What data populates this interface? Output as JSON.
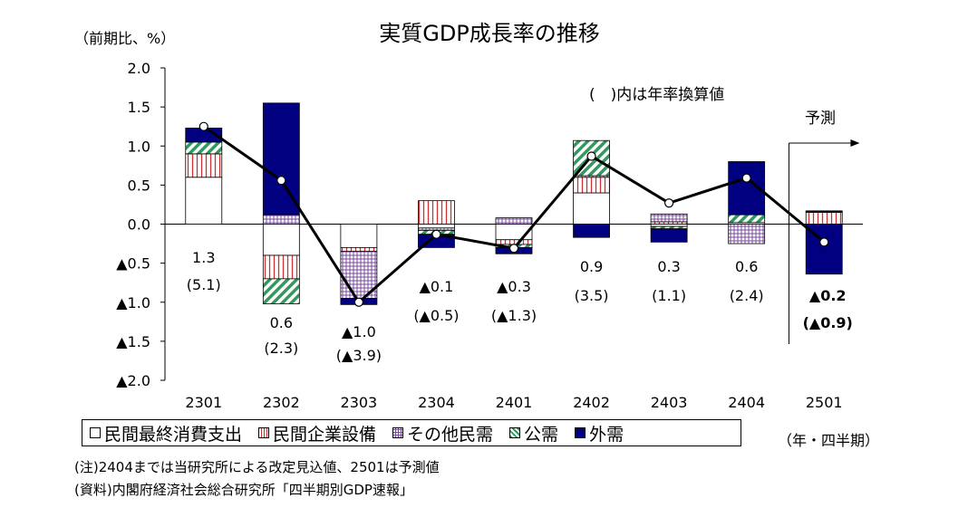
{
  "chart_data": {
    "type": "bar",
    "subtype": "stacked-bar-with-line",
    "title": "実質GDP成長率の推移",
    "ylabel": "（前期比、%）",
    "xlabel": "（年・四半期）",
    "ylim": [
      -2.0,
      2.0
    ],
    "ytick_values": [
      2.0,
      1.5,
      1.0,
      0.5,
      0.0,
      -0.5,
      -1.0,
      -1.5,
      -2.0
    ],
    "ytick_labels": [
      "2.0",
      "1.5",
      "1.0",
      "0.5",
      "0.0",
      "▲0.5",
      "▲1.0",
      "▲1.5",
      "▲2.0"
    ],
    "categories": [
      "2301",
      "2302",
      "2303",
      "2304",
      "2401",
      "2402",
      "2403",
      "2404",
      "2501"
    ],
    "series": [
      {
        "name": "民間最終消費支出",
        "color": "#ffffff",
        "pattern": "plain",
        "values": [
          0.6,
          -0.4,
          -0.3,
          -0.05,
          -0.2,
          0.4,
          -0.03,
          0.02,
          0.0
        ]
      },
      {
        "name": "民間企業設備",
        "color": "#cc3333",
        "pattern": "vstripe",
        "values": [
          0.3,
          -0.3,
          -0.05,
          0.3,
          -0.06,
          0.2,
          0.03,
          0.0,
          0.15
        ]
      },
      {
        "name": "その他民需",
        "color": "#7a4aa0",
        "pattern": "grid",
        "values": [
          0.0,
          0.12,
          -0.6,
          -0.03,
          0.08,
          0.02,
          0.1,
          -0.25,
          0.01
        ]
      },
      {
        "name": "公需",
        "color": "#2e9a5e",
        "pattern": "diag",
        "values": [
          0.15,
          -0.32,
          0.0,
          -0.05,
          -0.04,
          0.45,
          -0.03,
          0.1,
          0.01
        ]
      },
      {
        "name": "外需",
        "color": "#000080",
        "pattern": "solid",
        "values": [
          0.18,
          1.43,
          -0.08,
          -0.17,
          -0.08,
          -0.17,
          -0.17,
          0.68,
          -0.64
        ]
      }
    ],
    "line": {
      "name": "実質GDP成長率",
      "values": [
        1.25,
        0.56,
        -1.0,
        -0.13,
        -0.31,
        0.87,
        0.27,
        0.59,
        -0.23
      ]
    },
    "labels": [
      {
        "category": "2301",
        "value": "1.3",
        "annual": "(5.1)",
        "bold": false
      },
      {
        "category": "2302",
        "value": "0.6",
        "annual": "(2.3)",
        "bold": false
      },
      {
        "category": "2303",
        "value": "▲1.0",
        "annual": "(▲3.9)",
        "bold": false
      },
      {
        "category": "2304",
        "value": "▲0.1",
        "annual": "(▲0.5)",
        "bold": false
      },
      {
        "category": "2401",
        "value": "▲0.3",
        "annual": "(▲1.3)",
        "bold": false
      },
      {
        "category": "2402",
        "value": "0.9",
        "annual": "(3.5)",
        "bold": false
      },
      {
        "category": "2403",
        "value": "0.3",
        "annual": "(1.1)",
        "bold": false
      },
      {
        "category": "2404",
        "value": "0.6",
        "annual": "(2.4)",
        "bold": false
      },
      {
        "category": "2501",
        "value": "▲0.2",
        "annual": "(▲0.9)",
        "bold": true
      }
    ],
    "annotation_annual": "(　)内は年率換算値",
    "annotation_forecast": "予測",
    "grid": false,
    "legend_position": "bottom"
  },
  "notes": {
    "note1": "(注)2404までは当研究所による改定見込値、2501は予測値",
    "note2": "(資料)内閣府経済社会総合研究所「四半期別GDP速報」"
  }
}
